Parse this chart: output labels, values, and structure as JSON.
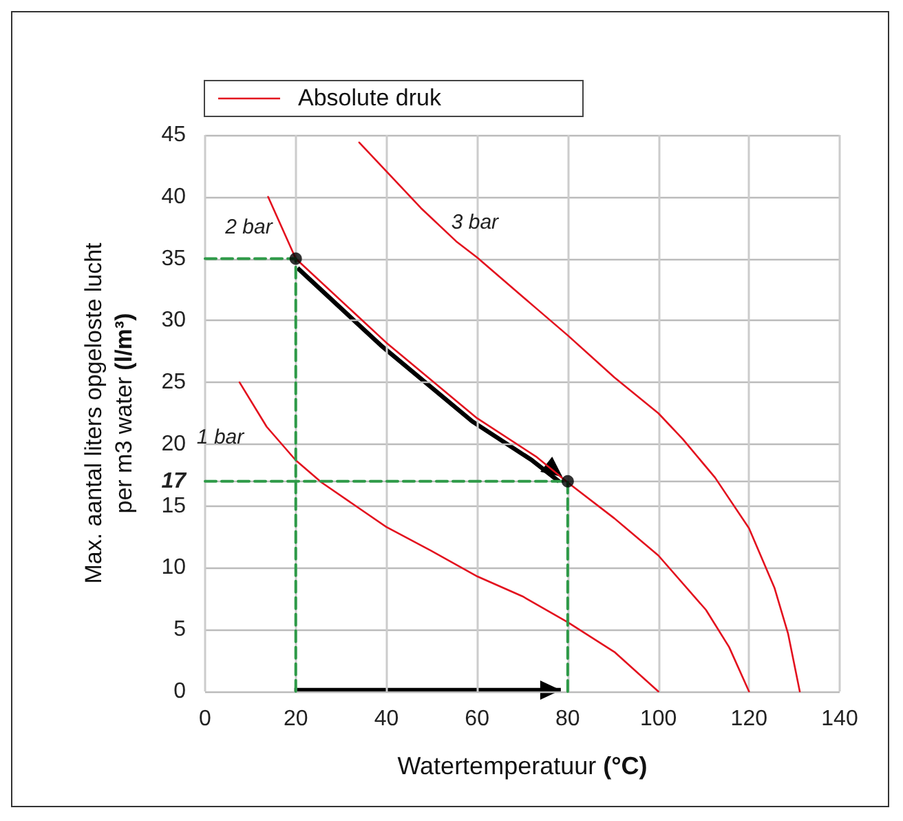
{
  "chart_data": {
    "type": "line",
    "xlabel": "Watertemperatuur (°C)",
    "ylabel": "Max. aantal liters opgeloste lucht\nper m3 water (l/m³)",
    "legend_title": "Absolute druk",
    "legend": "top left",
    "grid": true,
    "xlim": [
      0,
      140
    ],
    "xticks": [
      0,
      20,
      40,
      60,
      80,
      100,
      120,
      140
    ],
    "ylim": [
      0,
      45
    ],
    "yticks": [
      0,
      5,
      10,
      15,
      17,
      20,
      25,
      30,
      35,
      40,
      45
    ],
    "series": [
      {
        "name": "1 bar",
        "color": "#e3101e",
        "x": [
          7.6,
          13.6,
          20,
          25.7,
          40,
          49.8,
          60.1,
          70,
          80,
          90.3,
          100
        ],
        "values": [
          25,
          21.4,
          18.7,
          16.9,
          13.3,
          11.4,
          9.3,
          7.7,
          5.6,
          3.2,
          0
        ]
      },
      {
        "name": "2 bar",
        "color": "#e3101e",
        "x": [
          13.9,
          20,
          40,
          60,
          73,
          80,
          90.3,
          100,
          110.5,
          115.6,
          120
        ],
        "values": [
          40,
          35,
          28.2,
          22.1,
          19,
          16.9,
          14,
          11,
          6.6,
          3.6,
          0
        ]
      },
      {
        "name": "3 bar",
        "color": "#e3101e",
        "x": [
          34,
          47.6,
          55.4,
          60,
          73,
          80,
          90.3,
          100,
          105.4,
          112.5,
          120,
          125.6,
          128.6,
          131.2
        ],
        "values": [
          44.4,
          39.1,
          36.4,
          35.1,
          31,
          28.8,
          25.4,
          22.5,
          20.4,
          17.3,
          13.2,
          8.4,
          4.7,
          0
        ]
      },
      {
        "type": "line",
        "color": "#2e9a48",
        "line_style": "dashed",
        "x": [
          0,
          20,
          20
        ],
        "values": [
          35,
          35,
          0
        ]
      },
      {
        "type": "line",
        "color": "#2e9a48",
        "line_style": "dashed",
        "x": [
          0,
          80,
          80
        ],
        "values": [
          17,
          17,
          0
        ]
      },
      {
        "type": "scatter",
        "color": "#000000",
        "marker": "circle",
        "x": [
          20,
          80
        ],
        "values": [
          35,
          17
        ]
      }
    ]
  }
}
